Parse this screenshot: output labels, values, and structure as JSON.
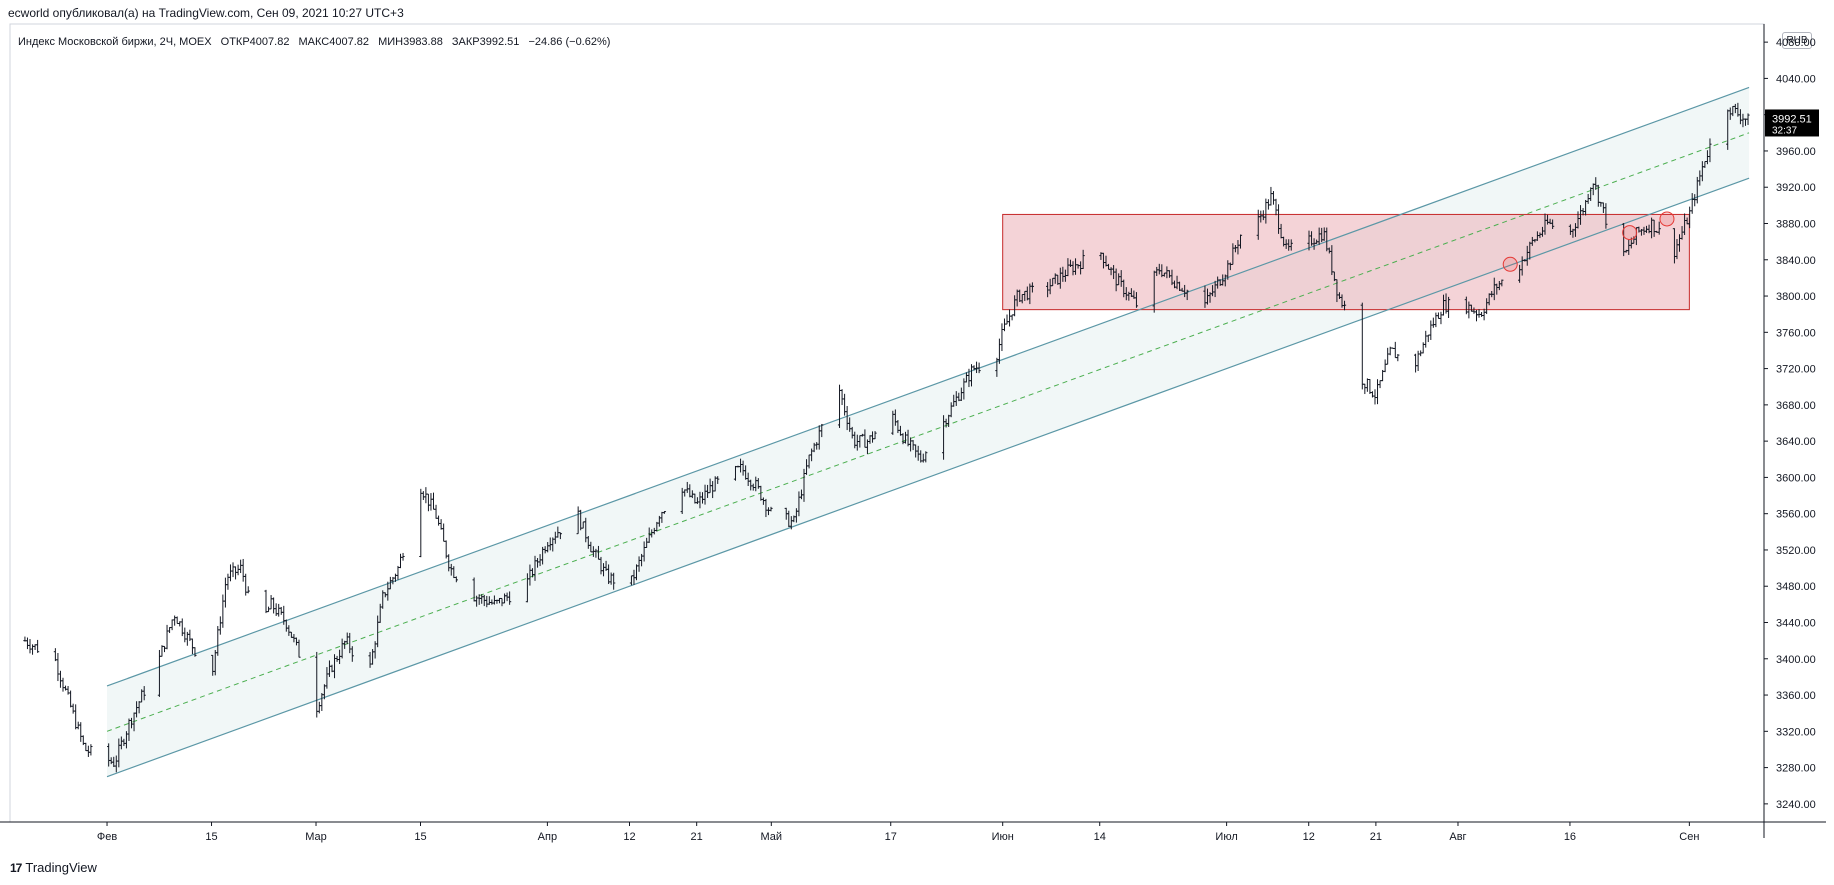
{
  "header": {
    "publisher_line": "ecworld опубликовал(а) на TradingView.com, Сен 09, 2021 10:27 UTC+3"
  },
  "legend": {
    "symbol": "Индекс Московской биржи, 2Ч, MOEX",
    "open_label": "ОТКР",
    "open_value": "4007.82",
    "high_label": "МАКС",
    "high_value": "4007.82",
    "low_label": "МИН",
    "low_value": "3983.88",
    "close_label": "ЗАКР",
    "close_value": "3992.51",
    "change": "−24.86 (−0.62%)"
  },
  "currency": "RUB",
  "price_badge": {
    "price": "3992.51",
    "countdown": "32:37",
    "background": "#000000"
  },
  "footer": {
    "brand": "TradingView",
    "logo_mark": "17"
  },
  "colors": {
    "candle": "#131722",
    "channel_line": "#5b97a6",
    "channel_fill": "#e8f1f2",
    "channel_mid": "#4caf50",
    "zone_fill": "#ecb6bc",
    "zone_border": "#c62828",
    "circle": "#e53935"
  },
  "chart_data": {
    "type": "ohlc",
    "ylim": [
      3220,
      4100
    ],
    "y_ticks": [
      3240,
      3280,
      3320,
      3360,
      3400,
      3440,
      3480,
      3520,
      3560,
      3600,
      3640,
      3680,
      3720,
      3760,
      3800,
      3840,
      3880,
      3920,
      3960,
      4000,
      4040,
      4080
    ],
    "x_ticks": [
      {
        "label": "Фев",
        "date": "2021-02-01"
      },
      {
        "label": "15",
        "date": "2021-02-15"
      },
      {
        "label": "Мар",
        "date": "2021-03-01"
      },
      {
        "label": "15",
        "date": "2021-03-15"
      },
      {
        "label": "Апр",
        "date": "2021-04-01"
      },
      {
        "label": "12",
        "date": "2021-04-12"
      },
      {
        "label": "21",
        "date": "2021-04-21"
      },
      {
        "label": "Май",
        "date": "2021-05-01"
      },
      {
        "label": "17",
        "date": "2021-05-17"
      },
      {
        "label": "Июн",
        "date": "2021-06-01"
      },
      {
        "label": "14",
        "date": "2021-06-14"
      },
      {
        "label": "Июл",
        "date": "2021-07-01"
      },
      {
        "label": "12",
        "date": "2021-07-12"
      },
      {
        "label": "21",
        "date": "2021-07-21"
      },
      {
        "label": "Авг",
        "date": "2021-08-01"
      },
      {
        "label": "16",
        "date": "2021-08-16"
      },
      {
        "label": "Сен",
        "date": "2021-09-01"
      }
    ],
    "close_path": [
      {
        "date": "2021-01-21",
        "close": 3420
      },
      {
        "date": "2021-01-25",
        "close": 3400
      },
      {
        "date": "2021-01-29",
        "close": 3300
      },
      {
        "date": "2021-02-02",
        "close": 3285
      },
      {
        "date": "2021-02-04",
        "close": 3330
      },
      {
        "date": "2021-02-08",
        "close": 3400
      },
      {
        "date": "2021-02-10",
        "close": 3450
      },
      {
        "date": "2021-02-12",
        "close": 3420
      },
      {
        "date": "2021-02-15",
        "close": 3380
      },
      {
        "date": "2021-02-17",
        "close": 3490
      },
      {
        "date": "2021-02-19",
        "close": 3500
      },
      {
        "date": "2021-02-21",
        "close": 3430
      },
      {
        "date": "2021-02-23",
        "close": 3460
      },
      {
        "date": "2021-02-25",
        "close": 3440
      },
      {
        "date": "2021-02-27",
        "close": 3400
      },
      {
        "date": "2021-03-01",
        "close": 3345
      },
      {
        "date": "2021-03-03",
        "close": 3390
      },
      {
        "date": "2021-03-05",
        "close": 3420
      },
      {
        "date": "2021-03-08",
        "close": 3380
      },
      {
        "date": "2021-03-10",
        "close": 3470
      },
      {
        "date": "2021-03-12",
        "close": 3500
      },
      {
        "date": "2021-03-15",
        "close": 3590
      },
      {
        "date": "2021-03-17",
        "close": 3560
      },
      {
        "date": "2021-03-19",
        "close": 3500
      },
      {
        "date": "2021-03-22",
        "close": 3470
      },
      {
        "date": "2021-03-25",
        "close": 3460
      },
      {
        "date": "2021-03-29",
        "close": 3480
      },
      {
        "date": "2021-04-01",
        "close": 3530
      },
      {
        "date": "2021-04-05",
        "close": 3560
      },
      {
        "date": "2021-04-07",
        "close": 3520
      },
      {
        "date": "2021-04-09",
        "close": 3490
      },
      {
        "date": "2021-04-12",
        "close": 3480
      },
      {
        "date": "2021-04-14",
        "close": 3520
      },
      {
        "date": "2021-04-16",
        "close": 3560
      },
      {
        "date": "2021-04-19",
        "close": 3590
      },
      {
        "date": "2021-04-21",
        "close": 3570
      },
      {
        "date": "2021-04-23",
        "close": 3590
      },
      {
        "date": "2021-04-27",
        "close": 3610
      },
      {
        "date": "2021-04-29",
        "close": 3590
      },
      {
        "date": "2021-05-01",
        "close": 3560
      },
      {
        "date": "2021-05-04",
        "close": 3550
      },
      {
        "date": "2021-05-06",
        "close": 3620
      },
      {
        "date": "2021-05-08",
        "close": 3660
      },
      {
        "date": "2021-05-10",
        "close": 3700
      },
      {
        "date": "2021-05-12",
        "close": 3640
      },
      {
        "date": "2021-05-14",
        "close": 3640
      },
      {
        "date": "2021-05-17",
        "close": 3670
      },
      {
        "date": "2021-05-19",
        "close": 3640
      },
      {
        "date": "2021-05-21",
        "close": 3620
      },
      {
        "date": "2021-05-24",
        "close": 3660
      },
      {
        "date": "2021-05-26",
        "close": 3690
      },
      {
        "date": "2021-05-28",
        "close": 3720
      },
      {
        "date": "2021-05-31",
        "close": 3730
      },
      {
        "date": "2021-06-01",
        "close": 3760
      },
      {
        "date": "2021-06-03",
        "close": 3800
      },
      {
        "date": "2021-06-07",
        "close": 3810
      },
      {
        "date": "2021-06-10",
        "close": 3830
      },
      {
        "date": "2021-06-14",
        "close": 3850
      },
      {
        "date": "2021-06-16",
        "close": 3820
      },
      {
        "date": "2021-06-19",
        "close": 3790
      },
      {
        "date": "2021-06-22",
        "close": 3830
      },
      {
        "date": "2021-06-25",
        "close": 3810
      },
      {
        "date": "2021-06-28",
        "close": 3790
      },
      {
        "date": "2021-07-01",
        "close": 3830
      },
      {
        "date": "2021-07-03",
        "close": 3870
      },
      {
        "date": "2021-07-05",
        "close": 3880
      },
      {
        "date": "2021-07-07",
        "close": 3910
      },
      {
        "date": "2021-07-09",
        "close": 3850
      },
      {
        "date": "2021-07-12",
        "close": 3860
      },
      {
        "date": "2021-07-14",
        "close": 3870
      },
      {
        "date": "2021-07-16",
        "close": 3800
      },
      {
        "date": "2021-07-18",
        "close": 3770
      },
      {
        "date": "2021-07-19",
        "close": 3710
      },
      {
        "date": "2021-07-21",
        "close": 3690
      },
      {
        "date": "2021-07-23",
        "close": 3740
      },
      {
        "date": "2021-07-26",
        "close": 3720
      },
      {
        "date": "2021-07-28",
        "close": 3760
      },
      {
        "date": "2021-07-30",
        "close": 3790
      },
      {
        "date": "2021-08-02",
        "close": 3790
      },
      {
        "date": "2021-08-04",
        "close": 3780
      },
      {
        "date": "2021-08-06",
        "close": 3810
      },
      {
        "date": "2021-08-09",
        "close": 3830
      },
      {
        "date": "2021-08-11",
        "close": 3860
      },
      {
        "date": "2021-08-13",
        "close": 3880
      },
      {
        "date": "2021-08-16",
        "close": 3870
      },
      {
        "date": "2021-08-18",
        "close": 3900
      },
      {
        "date": "2021-08-19",
        "close": 3930
      },
      {
        "date": "2021-08-21",
        "close": 3880
      },
      {
        "date": "2021-08-23",
        "close": 3840
      },
      {
        "date": "2021-08-25",
        "close": 3870
      },
      {
        "date": "2021-08-27",
        "close": 3880
      },
      {
        "date": "2021-08-30",
        "close": 3850
      },
      {
        "date": "2021-09-01",
        "close": 3890
      },
      {
        "date": "2021-09-03",
        "close": 3950
      },
      {
        "date": "2021-09-06",
        "close": 4010
      },
      {
        "date": "2021-09-09",
        "close": 3992.51
      }
    ],
    "channel": {
      "upper": [
        {
          "date": "2021-02-01",
          "price": 3370
        },
        {
          "date": "2021-09-09",
          "price": 4030
        }
      ],
      "middle": [
        {
          "date": "2021-02-01",
          "price": 3320
        },
        {
          "date": "2021-09-09",
          "price": 3980
        }
      ],
      "lower": [
        {
          "date": "2021-02-01",
          "price": 3270
        },
        {
          "date": "2021-09-09",
          "price": 3930
        }
      ]
    },
    "zone": {
      "date_start": "2021-06-01",
      "date_end": "2021-09-01",
      "price_top": 3890,
      "price_bottom": 3785
    },
    "markers": [
      {
        "date": "2021-08-08",
        "price": 3835
      },
      {
        "date": "2021-08-24",
        "price": 3870
      },
      {
        "date": "2021-08-29",
        "price": 3885
      }
    ]
  }
}
